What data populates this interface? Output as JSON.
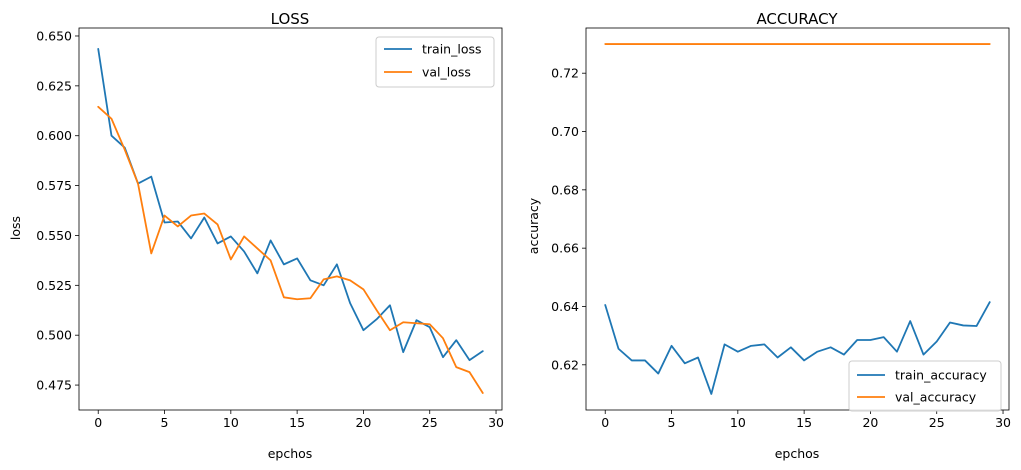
{
  "chart_data": [
    {
      "type": "line",
      "title": "LOSS",
      "xlabel": "epchos",
      "ylabel": "loss",
      "xlim": [
        -1.45,
        30.45
      ],
      "ylim": [
        0.4625,
        0.654
      ],
      "xticks": [
        0,
        5,
        10,
        15,
        20,
        25,
        30
      ],
      "xtick_labels": [
        "0",
        "5",
        "10",
        "15",
        "20",
        "25",
        "30"
      ],
      "yticks": [
        0.475,
        0.5,
        0.525,
        0.55,
        0.575,
        0.6,
        0.625,
        0.65
      ],
      "ytick_labels": [
        "0.475",
        "0.500",
        "0.525",
        "0.550",
        "0.575",
        "0.600",
        "0.625",
        "0.650"
      ],
      "grid": false,
      "legend_position": "top-right",
      "x": [
        0,
        1,
        2,
        3,
        4,
        5,
        6,
        7,
        8,
        9,
        10,
        11,
        12,
        13,
        14,
        15,
        16,
        17,
        18,
        19,
        20,
        21,
        22,
        23,
        24,
        25,
        26,
        27,
        28,
        29
      ],
      "series": [
        {
          "name": "train_loss",
          "color": "#1f77b4",
          "values": [
            0.6435,
            0.6,
            0.594,
            0.576,
            0.5795,
            0.5565,
            0.557,
            0.5485,
            0.559,
            0.546,
            0.5495,
            0.542,
            0.531,
            0.5475,
            0.5355,
            0.5385,
            0.5275,
            0.525,
            0.5355,
            0.516,
            0.5025,
            0.508,
            0.515,
            0.4915,
            0.5075,
            0.504,
            0.489,
            0.4975,
            0.4875,
            0.492
          ]
        },
        {
          "name": "val_loss",
          "color": "#ff7f0e",
          "values": [
            0.6145,
            0.6085,
            0.593,
            0.576,
            0.541,
            0.56,
            0.5545,
            0.56,
            0.561,
            0.5555,
            0.538,
            0.5495,
            0.5435,
            0.5375,
            0.519,
            0.518,
            0.5185,
            0.528,
            0.5295,
            0.5275,
            0.523,
            0.5125,
            0.5025,
            0.5065,
            0.506,
            0.5055,
            0.4985,
            0.484,
            0.4815,
            0.471
          ]
        }
      ]
    },
    {
      "type": "line",
      "title": "ACCURACY",
      "xlabel": "epchos",
      "ylabel": "accuracy",
      "xlim": [
        -1.45,
        30.45
      ],
      "ylim": [
        0.6045,
        0.7355
      ],
      "xticks": [
        0,
        5,
        10,
        15,
        20,
        25,
        30
      ],
      "xtick_labels": [
        "0",
        "5",
        "10",
        "15",
        "20",
        "25",
        "30"
      ],
      "yticks": [
        0.62,
        0.64,
        0.66,
        0.68,
        0.7,
        0.72
      ],
      "ytick_labels": [
        "0.62",
        "0.64",
        "0.66",
        "0.68",
        "0.70",
        "0.72"
      ],
      "grid": false,
      "legend_position": "bottom-right",
      "x": [
        0,
        1,
        2,
        3,
        4,
        5,
        6,
        7,
        8,
        9,
        10,
        11,
        12,
        13,
        14,
        15,
        16,
        17,
        18,
        19,
        20,
        21,
        22,
        23,
        24,
        25,
        26,
        27,
        28,
        29
      ],
      "series": [
        {
          "name": "train_accuracy",
          "color": "#1f77b4",
          "values": [
            0.6405,
            0.6255,
            0.6215,
            0.6215,
            0.617,
            0.6265,
            0.6205,
            0.6225,
            0.61,
            0.627,
            0.6245,
            0.6265,
            0.627,
            0.6225,
            0.626,
            0.6215,
            0.6245,
            0.626,
            0.6235,
            0.6285,
            0.6285,
            0.6295,
            0.6245,
            0.635,
            0.6235,
            0.628,
            0.6345,
            0.6335,
            0.6333,
            0.6415
          ]
        },
        {
          "name": "val_accuracy",
          "color": "#ff7f0e",
          "values": [
            0.73,
            0.73,
            0.73,
            0.73,
            0.73,
            0.73,
            0.73,
            0.73,
            0.73,
            0.73,
            0.73,
            0.73,
            0.73,
            0.73,
            0.73,
            0.73,
            0.73,
            0.73,
            0.73,
            0.73,
            0.73,
            0.73,
            0.73,
            0.73,
            0.73,
            0.73,
            0.73,
            0.73,
            0.73,
            0.73
          ]
        }
      ]
    }
  ]
}
